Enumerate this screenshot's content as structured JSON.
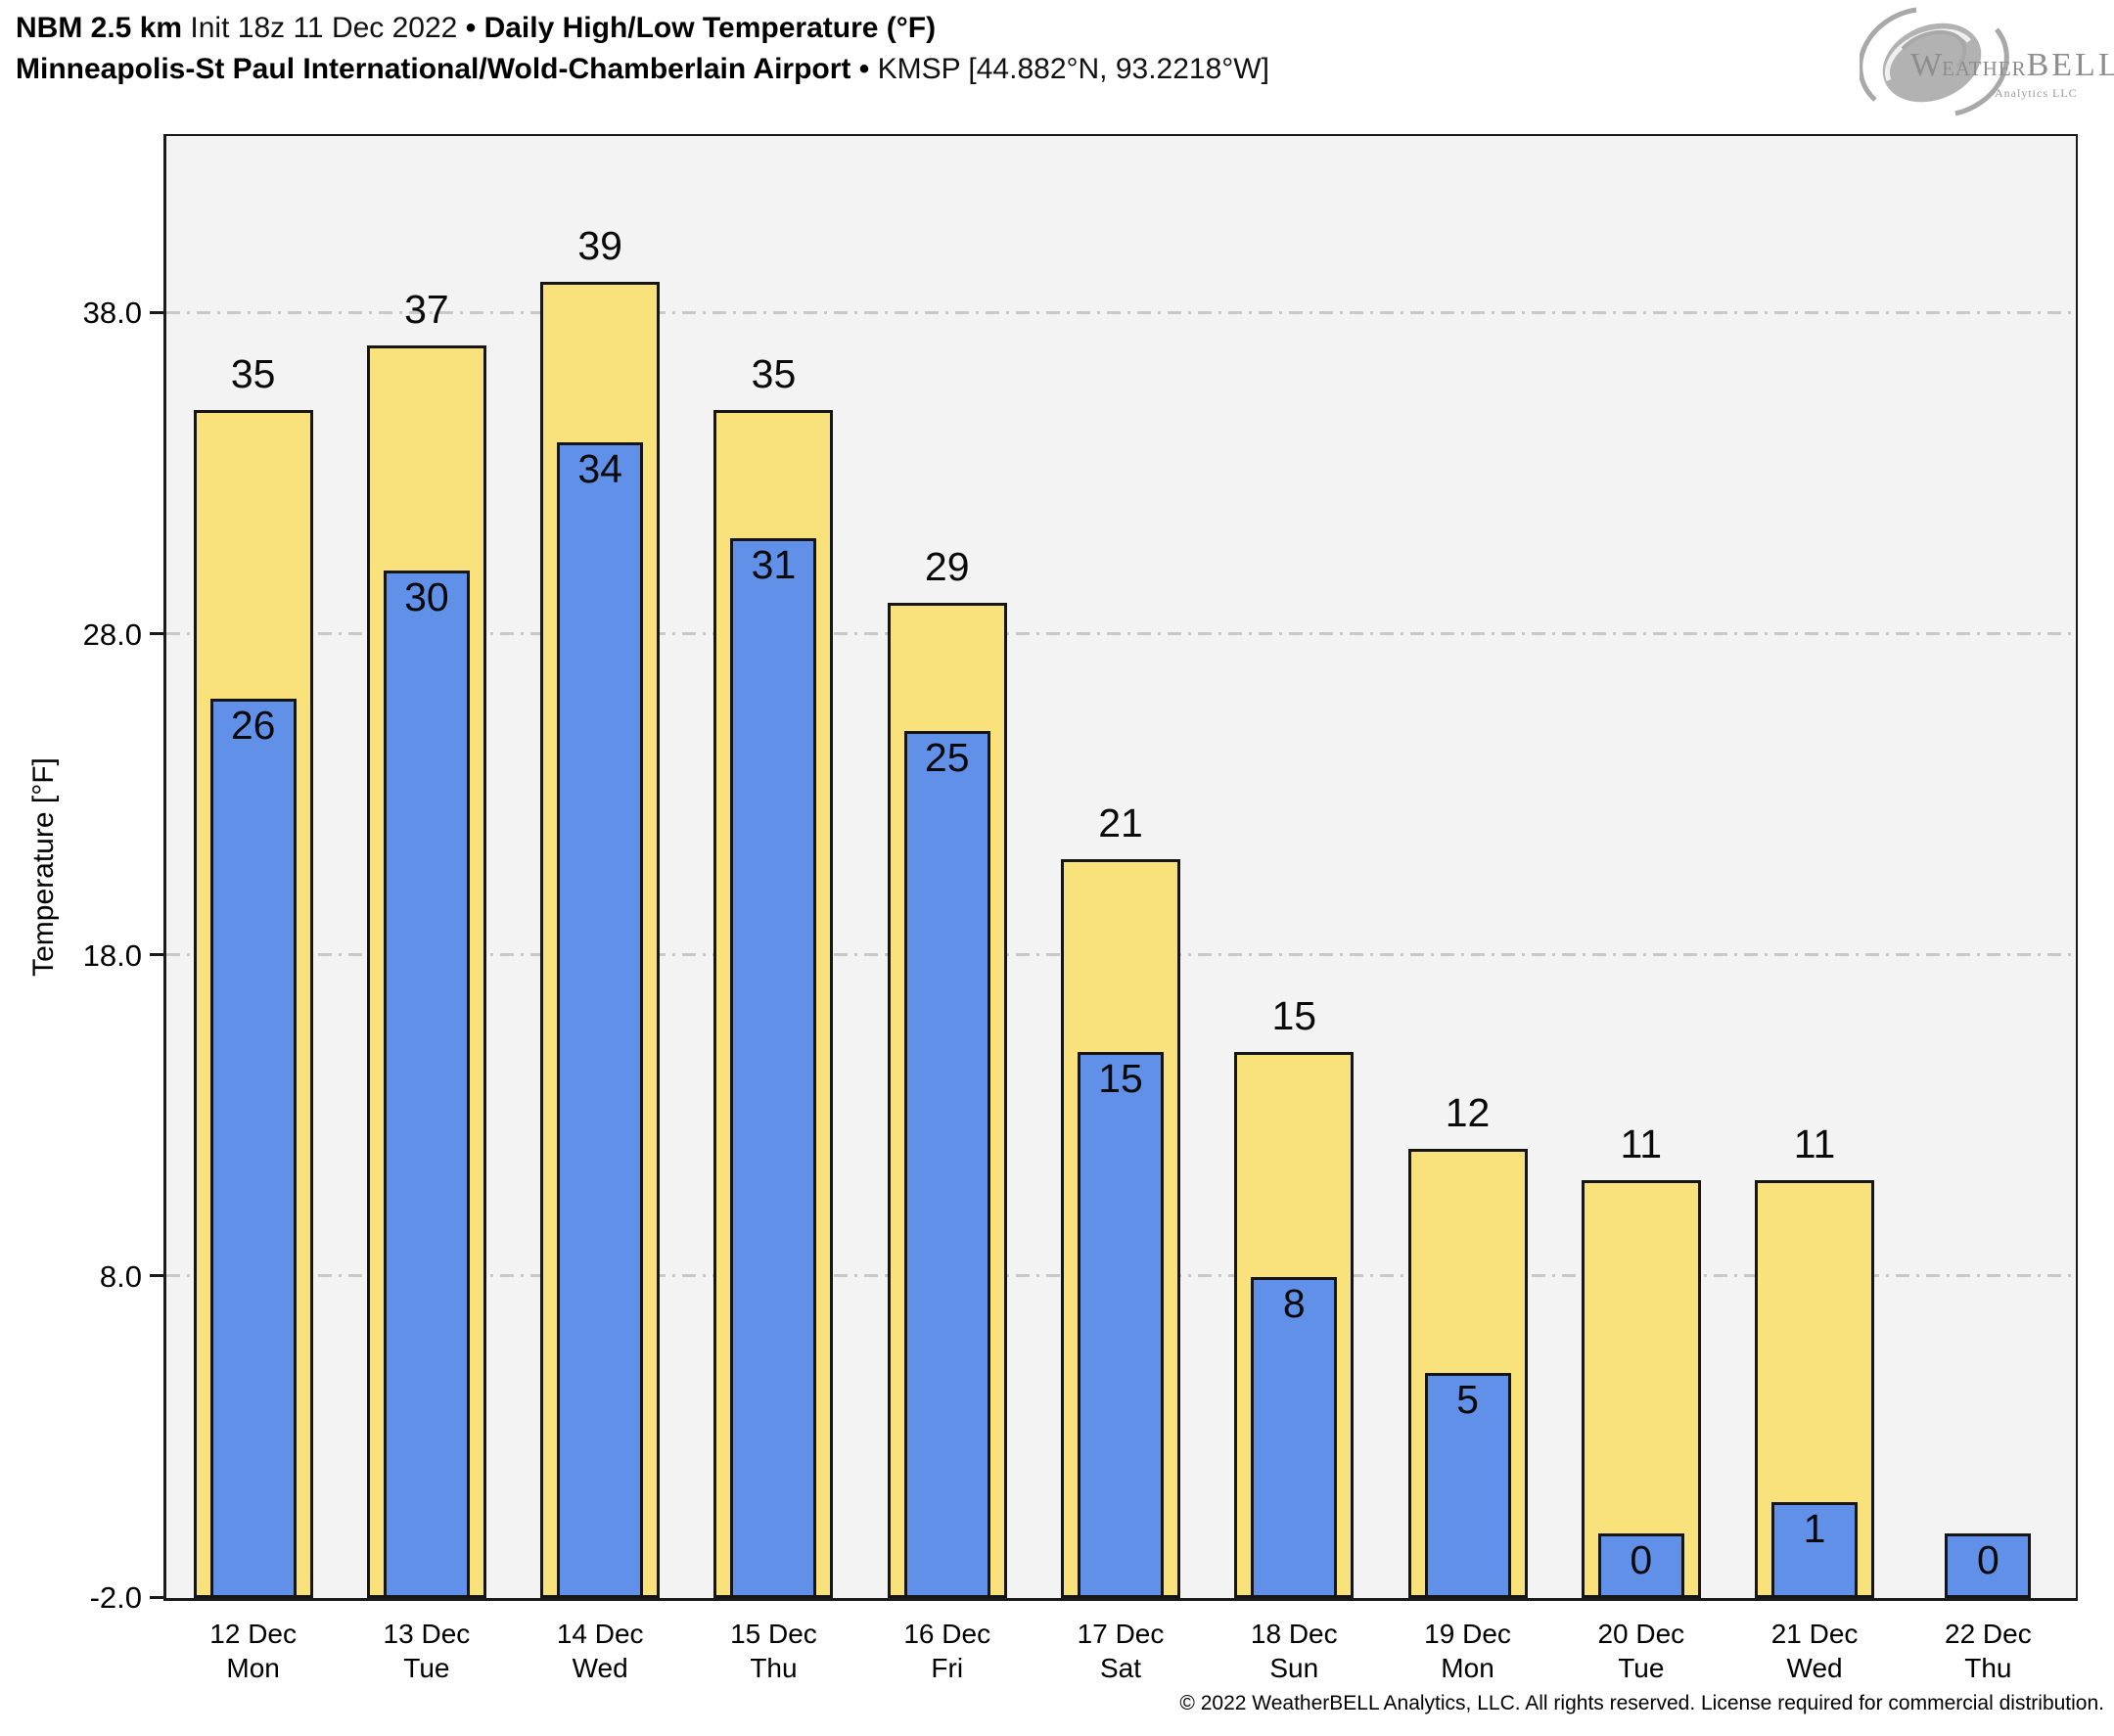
{
  "header": {
    "title_model": "NBM 2.5 km",
    "title_init": "Init 18z 11 Dec 2022",
    "title_bullet": "•",
    "title_product": "Daily High/Low Temperature (°F)",
    "subtitle_station": "Minneapolis-St Paul International/Wold-Chamberlain Airport",
    "subtitle_bullet": "•",
    "subtitle_id": "KMSP [44.882°N, 93.2218°W]"
  },
  "logo": {
    "brand_w": "W",
    "brand_eather": "EATHER",
    "brand_bell": "BELL",
    "brand_sub": "Analytics LLC"
  },
  "chart_data": {
    "type": "bar",
    "title": "NBM 2.5 km Daily High/Low Temperature (°F) — KMSP",
    "ylabel": "Temperature [°F]",
    "ylim": [
      -2.0,
      43.5
    ],
    "yticks": [
      38.0,
      28.0,
      18.0,
      8.0,
      -2.0
    ],
    "grid": "horizontal dash-dot",
    "legend_position": "none",
    "categories": [
      {
        "date": "12 Dec",
        "day": "Mon"
      },
      {
        "date": "13 Dec",
        "day": "Tue"
      },
      {
        "date": "14 Dec",
        "day": "Wed"
      },
      {
        "date": "15 Dec",
        "day": "Thu"
      },
      {
        "date": "16 Dec",
        "day": "Fri"
      },
      {
        "date": "17 Dec",
        "day": "Sat"
      },
      {
        "date": "18 Dec",
        "day": "Sun"
      },
      {
        "date": "19 Dec",
        "day": "Mon"
      },
      {
        "date": "20 Dec",
        "day": "Tue"
      },
      {
        "date": "21 Dec",
        "day": "Wed"
      },
      {
        "date": "22 Dec",
        "day": "Thu"
      }
    ],
    "series": [
      {
        "name": "Daily High",
        "color": "#f9e17c",
        "values": [
          35,
          37,
          39,
          35,
          29,
          21,
          15,
          12,
          11,
          11,
          null
        ]
      },
      {
        "name": "Daily Low",
        "color": "#6190e8",
        "values": [
          26,
          30,
          34,
          31,
          25,
          15,
          8,
          5,
          0,
          1,
          0
        ]
      }
    ]
  },
  "footer": {
    "copyright": "© 2022 WeatherBELL Analytics, LLC. All rights reserved. License required for commercial distribution."
  }
}
